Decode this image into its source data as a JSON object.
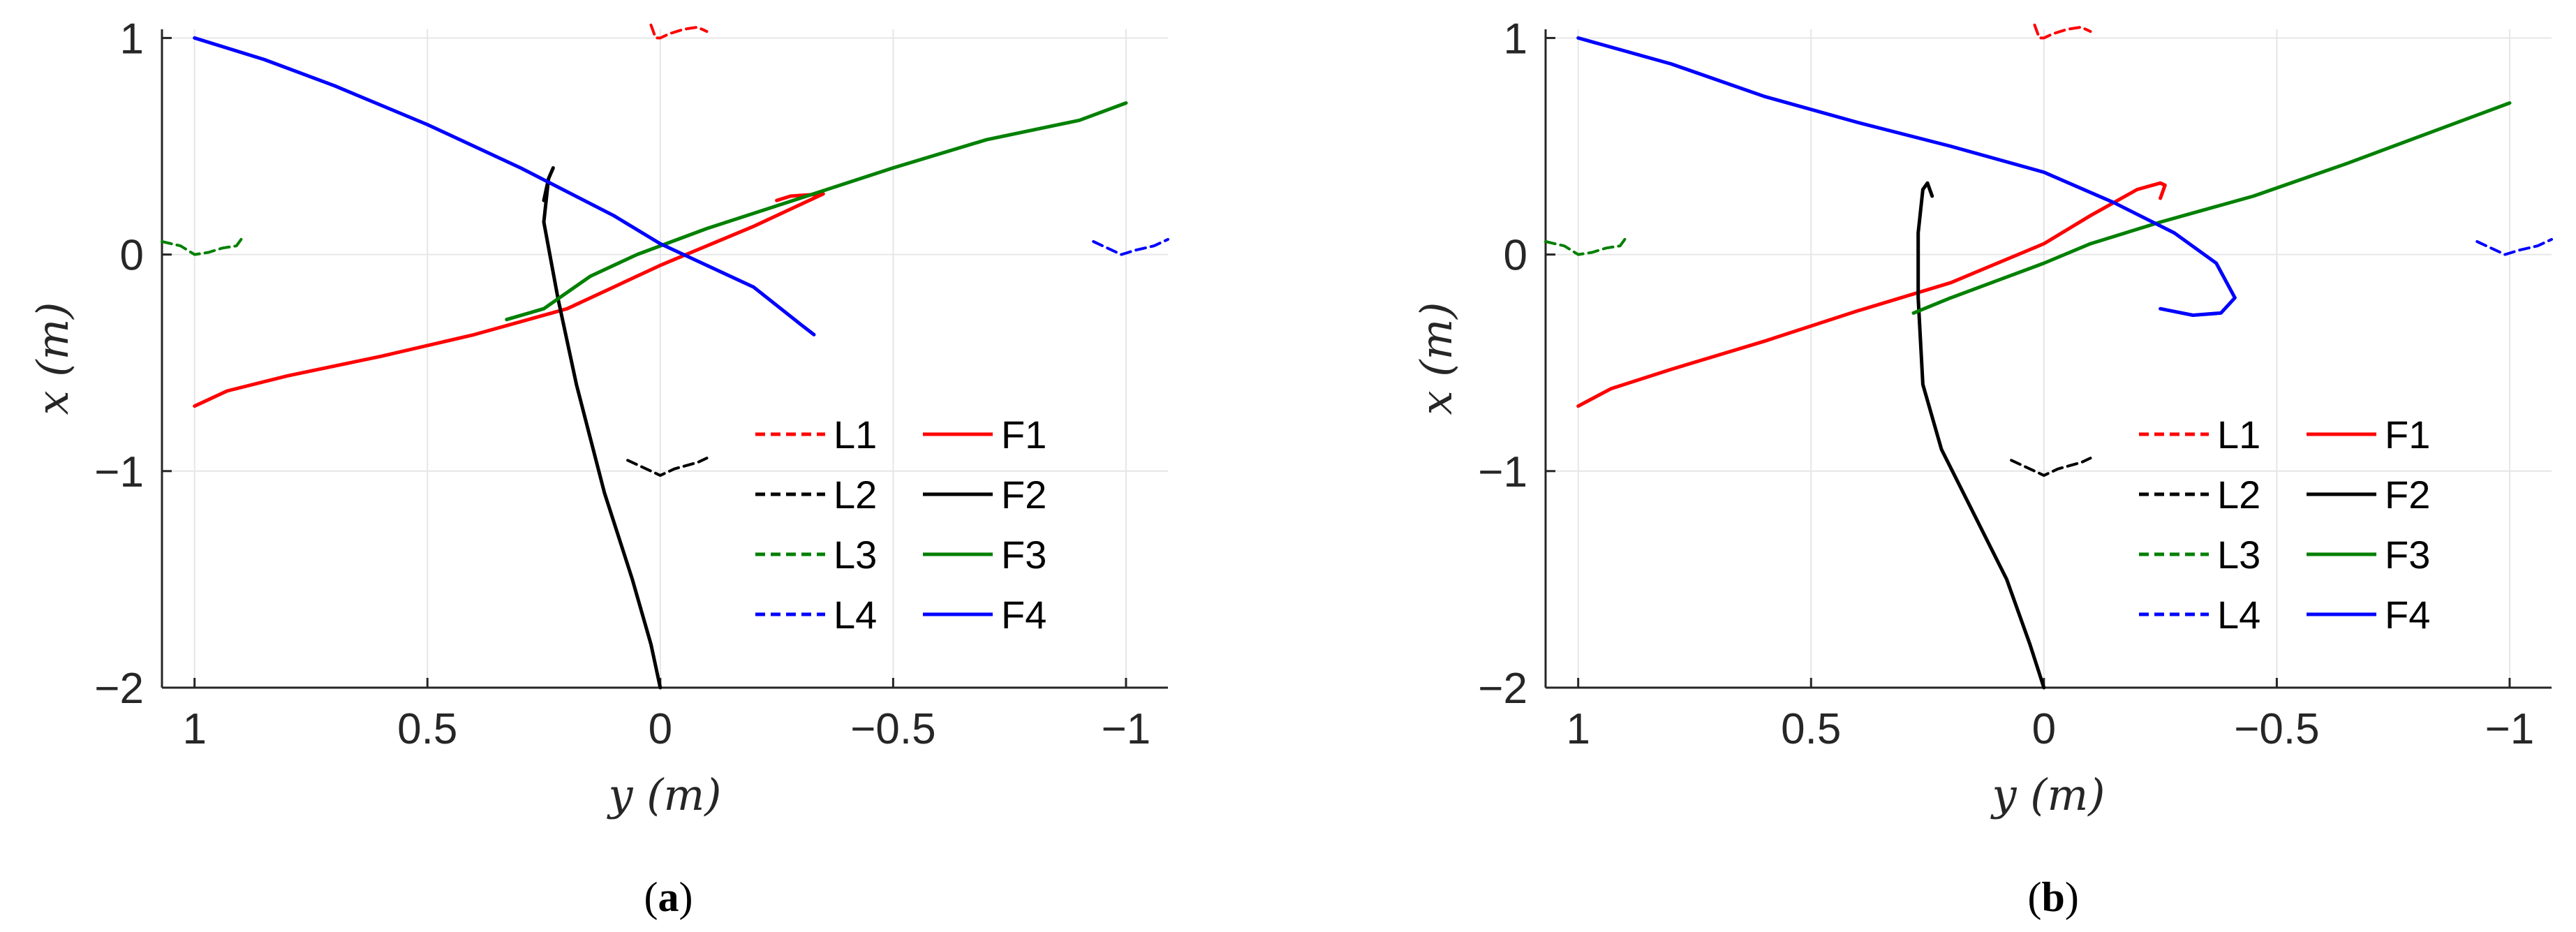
{
  "chart_data": [
    {
      "type": "line",
      "caption_open": "(",
      "caption_letter": "a",
      "caption_close": ")",
      "xlabel": "y (m)",
      "ylabel": "x (m)",
      "x_reversed": true,
      "xlim": [
        1.07,
        -1.09
      ],
      "ylim": [
        -2,
        1.04
      ],
      "xticks": [
        1,
        0.5,
        0,
        -0.5,
        -1
      ],
      "xtick_labels": [
        "1",
        "0.5",
        "0",
        "−0.5",
        "−1"
      ],
      "yticks": [
        1,
        0,
        -1,
        -2
      ],
      "ytick_labels": [
        "1",
        "0",
        "−1",
        "−2"
      ],
      "grid": true,
      "legend_position": "lower-right",
      "legend_columns": 2,
      "colors": {
        "1": "#ff0000",
        "2": "#000000",
        "3": "#008000",
        "4": "#0000ff"
      },
      "series": [
        {
          "name": "L1",
          "style": "dashed",
          "color": "#ff0000",
          "points": [
            [
              0.02,
              1.06
            ],
            [
              0.01,
              1.0
            ],
            [
              0.0,
              1.0
            ],
            [
              -0.02,
              1.02
            ],
            [
              -0.05,
              1.04
            ],
            [
              -0.08,
              1.05
            ],
            [
              -0.1,
              1.03
            ]
          ]
        },
        {
          "name": "L2",
          "style": "dashed",
          "color": "#000000",
          "points": [
            [
              0.07,
              -0.95
            ],
            [
              0.03,
              -0.99
            ],
            [
              0.0,
              -1.02
            ],
            [
              -0.03,
              -0.99
            ],
            [
              -0.08,
              -0.96
            ],
            [
              -0.1,
              -0.94
            ]
          ]
        },
        {
          "name": "L3",
          "style": "dashed",
          "color": "#008000",
          "points": [
            [
              1.07,
              0.06
            ],
            [
              1.03,
              0.04
            ],
            [
              1.0,
              0.0
            ],
            [
              0.97,
              0.01
            ],
            [
              0.94,
              0.03
            ],
            [
              0.91,
              0.04
            ],
            [
              0.9,
              0.07
            ]
          ]
        },
        {
          "name": "L4",
          "style": "dashed",
          "color": "#0000ff",
          "points": [
            [
              -0.93,
              0.06
            ],
            [
              -0.96,
              0.03
            ],
            [
              -0.99,
              0.0
            ],
            [
              -1.02,
              0.02
            ],
            [
              -1.06,
              0.04
            ],
            [
              -1.09,
              0.07
            ]
          ]
        },
        {
          "name": "F1",
          "style": "solid",
          "color": "#ff0000",
          "points": [
            [
              1.0,
              -0.7
            ],
            [
              0.93,
              -0.63
            ],
            [
              0.8,
              -0.56
            ],
            [
              0.6,
              -0.47
            ],
            [
              0.4,
              -0.37
            ],
            [
              0.2,
              -0.25
            ],
            [
              0.0,
              -0.05
            ],
            [
              -0.2,
              0.13
            ],
            [
              -0.35,
              0.28
            ],
            [
              -0.28,
              0.27
            ],
            [
              -0.25,
              0.25
            ]
          ]
        },
        {
          "name": "F2",
          "style": "solid",
          "color": "#000000",
          "points": [
            [
              0.0,
              -2.0
            ],
            [
              0.02,
              -1.8
            ],
            [
              0.06,
              -1.5
            ],
            [
              0.12,
              -1.1
            ],
            [
              0.18,
              -0.6
            ],
            [
              0.22,
              -0.2
            ],
            [
              0.25,
              0.15
            ],
            [
              0.24,
              0.35
            ],
            [
              0.23,
              0.4
            ],
            [
              0.24,
              0.35
            ],
            [
              0.25,
              0.25
            ]
          ]
        },
        {
          "name": "F3",
          "style": "solid",
          "color": "#008000",
          "points": [
            [
              0.33,
              -0.3
            ],
            [
              0.25,
              -0.25
            ],
            [
              0.15,
              -0.1
            ],
            [
              0.05,
              0.0
            ],
            [
              -0.1,
              0.12
            ],
            [
              -0.3,
              0.26
            ],
            [
              -0.5,
              0.4
            ],
            [
              -0.7,
              0.53
            ],
            [
              -0.9,
              0.62
            ],
            [
              -1.0,
              0.7
            ]
          ]
        },
        {
          "name": "F4",
          "style": "solid",
          "color": "#0000ff",
          "points": [
            [
              1.0,
              1.0
            ],
            [
              0.85,
              0.9
            ],
            [
              0.7,
              0.78
            ],
            [
              0.5,
              0.6
            ],
            [
              0.3,
              0.4
            ],
            [
              0.1,
              0.18
            ],
            [
              0.0,
              0.05
            ],
            [
              -0.1,
              -0.05
            ],
            [
              -0.2,
              -0.15
            ],
            [
              -0.3,
              -0.32
            ],
            [
              -0.33,
              -0.37
            ]
          ]
        }
      ]
    },
    {
      "type": "line",
      "caption_open": "(",
      "caption_letter": "b",
      "caption_close": ")",
      "xlabel": "y (m)",
      "ylabel": "x (m)",
      "x_reversed": true,
      "xlim": [
        1.07,
        -1.09
      ],
      "ylim": [
        -2,
        1.04
      ],
      "xticks": [
        1,
        0.5,
        0,
        -0.5,
        -1
      ],
      "xtick_labels": [
        "1",
        "0.5",
        "0",
        "−0.5",
        "−1"
      ],
      "yticks": [
        1,
        0,
        -1,
        -2
      ],
      "ytick_labels": [
        "1",
        "0",
        "−1",
        "−2"
      ],
      "grid": true,
      "legend_position": "lower-right",
      "legend_columns": 2,
      "colors": {
        "1": "#ff0000",
        "2": "#000000",
        "3": "#008000",
        "4": "#0000ff"
      },
      "series": [
        {
          "name": "L1",
          "style": "dashed",
          "color": "#ff0000",
          "points": [
            [
              0.02,
              1.06
            ],
            [
              0.01,
              1.0
            ],
            [
              0.0,
              1.0
            ],
            [
              -0.02,
              1.02
            ],
            [
              -0.05,
              1.04
            ],
            [
              -0.08,
              1.05
            ],
            [
              -0.1,
              1.03
            ]
          ]
        },
        {
          "name": "L2",
          "style": "dashed",
          "color": "#000000",
          "points": [
            [
              0.07,
              -0.95
            ],
            [
              0.03,
              -0.99
            ],
            [
              0.0,
              -1.02
            ],
            [
              -0.03,
              -0.99
            ],
            [
              -0.08,
              -0.96
            ],
            [
              -0.1,
              -0.94
            ]
          ]
        },
        {
          "name": "L3",
          "style": "dashed",
          "color": "#008000",
          "points": [
            [
              1.07,
              0.06
            ],
            [
              1.03,
              0.04
            ],
            [
              1.0,
              0.0
            ],
            [
              0.97,
              0.01
            ],
            [
              0.94,
              0.03
            ],
            [
              0.91,
              0.04
            ],
            [
              0.9,
              0.07
            ]
          ]
        },
        {
          "name": "L4",
          "style": "dashed",
          "color": "#0000ff",
          "points": [
            [
              -0.93,
              0.06
            ],
            [
              -0.96,
              0.03
            ],
            [
              -0.99,
              0.0
            ],
            [
              -1.02,
              0.02
            ],
            [
              -1.06,
              0.04
            ],
            [
              -1.09,
              0.07
            ]
          ]
        },
        {
          "name": "F1",
          "style": "solid",
          "color": "#ff0000",
          "points": [
            [
              1.0,
              -0.7
            ],
            [
              0.93,
              -0.62
            ],
            [
              0.8,
              -0.53
            ],
            [
              0.6,
              -0.4
            ],
            [
              0.4,
              -0.26
            ],
            [
              0.2,
              -0.13
            ],
            [
              0.0,
              0.05
            ],
            [
              -0.1,
              0.18
            ],
            [
              -0.2,
              0.3
            ],
            [
              -0.25,
              0.33
            ],
            [
              -0.26,
              0.32
            ],
            [
              -0.25,
              0.26
            ]
          ]
        },
        {
          "name": "F2",
          "style": "solid",
          "color": "#000000",
          "points": [
            [
              0.0,
              -2.0
            ],
            [
              0.03,
              -1.8
            ],
            [
              0.08,
              -1.5
            ],
            [
              0.15,
              -1.2
            ],
            [
              0.22,
              -0.9
            ],
            [
              0.26,
              -0.6
            ],
            [
              0.27,
              -0.2
            ],
            [
              0.27,
              0.1
            ],
            [
              0.26,
              0.3
            ],
            [
              0.25,
              0.33
            ],
            [
              0.24,
              0.27
            ]
          ]
        },
        {
          "name": "F3",
          "style": "solid",
          "color": "#008000",
          "points": [
            [
              0.28,
              -0.27
            ],
            [
              0.2,
              -0.2
            ],
            [
              0.1,
              -0.12
            ],
            [
              0.0,
              -0.04
            ],
            [
              -0.1,
              0.05
            ],
            [
              -0.25,
              0.15
            ],
            [
              -0.45,
              0.27
            ],
            [
              -0.65,
              0.42
            ],
            [
              -0.85,
              0.58
            ],
            [
              -1.0,
              0.7
            ]
          ]
        },
        {
          "name": "F4",
          "style": "solid",
          "color": "#0000ff",
          "points": [
            [
              1.0,
              1.0
            ],
            [
              0.8,
              0.88
            ],
            [
              0.6,
              0.73
            ],
            [
              0.4,
              0.61
            ],
            [
              0.2,
              0.5
            ],
            [
              0.0,
              0.38
            ],
            [
              -0.15,
              0.24
            ],
            [
              -0.28,
              0.1
            ],
            [
              -0.37,
              -0.04
            ],
            [
              -0.41,
              -0.2
            ],
            [
              -0.38,
              -0.27
            ],
            [
              -0.32,
              -0.28
            ],
            [
              -0.25,
              -0.25
            ]
          ]
        }
      ]
    }
  ]
}
